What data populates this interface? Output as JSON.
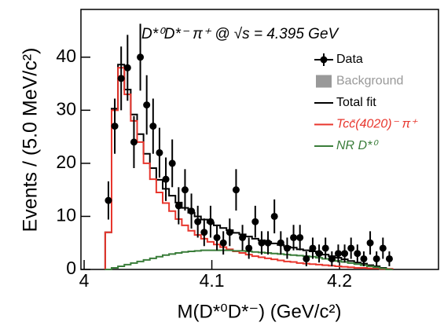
{
  "chart_data": {
    "type": "histfit",
    "title": "D*⁰D*⁻ π⁺ @ √s = 4.395 GeV",
    "xlabel": "M(D*⁰D*⁻) (GeV/c²)",
    "ylabel": "Events / (5.0 MeV/c²)",
    "xlim": [
      3.9975,
      4.2775
    ],
    "xticks": [
      4,
      4.1,
      4.2
    ],
    "ylim": [
      0,
      49
    ],
    "yticks": [
      0,
      10,
      20,
      30,
      40
    ],
    "x": [
      4.019,
      4.024,
      4.029,
      4.034,
      4.039,
      4.044,
      4.049,
      4.054,
      4.059,
      4.064,
      4.069,
      4.074,
      4.079,
      4.084,
      4.089,
      4.094,
      4.099,
      4.104,
      4.109,
      4.114,
      4.119,
      4.124,
      4.129,
      4.134,
      4.139,
      4.144,
      4.149,
      4.154,
      4.159,
      4.164,
      4.169,
      4.174,
      4.179,
      4.184,
      4.189,
      4.194,
      4.199,
      4.204,
      4.209,
      4.214,
      4.219,
      4.224,
      4.229,
      4.234,
      4.239
    ],
    "series": [
      {
        "name": "Data",
        "color": "#000000",
        "style": "points",
        "values": [
          13,
          27,
          36,
          38,
          24,
          40,
          31,
          27,
          22,
          17,
          20,
          12,
          15,
          11,
          9,
          7,
          9,
          6,
          5,
          7,
          15,
          6,
          4,
          9,
          5,
          5,
          10,
          5,
          4,
          6,
          6,
          2,
          4,
          3,
          4,
          2,
          3,
          3,
          4,
          3,
          2,
          5,
          2,
          4,
          2
        ],
        "errors": [
          3.6,
          5.2,
          6,
          6.2,
          4.9,
          6.3,
          5.6,
          5.2,
          4.7,
          4.1,
          4.5,
          3.5,
          3.9,
          3.3,
          3,
          2.6,
          3,
          2.4,
          2.2,
          2.6,
          3.9,
          2.4,
          2,
          3,
          2.2,
          2.2,
          3.2,
          2.2,
          2,
          2.4,
          2.4,
          1.4,
          2,
          1.7,
          2,
          1.4,
          1.7,
          1.7,
          2,
          1.7,
          1.4,
          2.2,
          1.4,
          2,
          1.4
        ]
      },
      {
        "name": "Background",
        "color": "#999999",
        "style": "fill"
      },
      {
        "name": "Total fit",
        "color": "#000000",
        "style": "step",
        "values": [
          7,
          30.3,
          38.6,
          33.9,
          29.2,
          25.5,
          21.8,
          19.1,
          16.9,
          15.2,
          13.9,
          12.6,
          11.6,
          10.7,
          10.0,
          9.4,
          8.8,
          8.3,
          7.8,
          7.4,
          6.9,
          6.6,
          6.2,
          5.8,
          5.5,
          5.2,
          4.9,
          4.6,
          4.3,
          4.1,
          3.8,
          3.6,
          3.4,
          3.1,
          2.8,
          2.5,
          2.2,
          1.9,
          1.6,
          1.3,
          1.1,
          0.8,
          0.6,
          0.3,
          0.1
        ]
      },
      {
        "name": "Tcc̄(4020)⁻ π⁺",
        "color": "#e8362d",
        "style": "step",
        "values": [
          7,
          30,
          38,
          33,
          28,
          24,
          20,
          17,
          14.5,
          12.5,
          11,
          9.5,
          8.3,
          7.3,
          6.5,
          5.8,
          5.2,
          4.7,
          4.2,
          3.8,
          3.4,
          3.1,
          2.8,
          2.5,
          2.3,
          2.1,
          1.9,
          1.7,
          1.5,
          1.4,
          1.2,
          1.1,
          1.0,
          0.9,
          0.8,
          0.7,
          0.6,
          0.5,
          0.4,
          0.3,
          0.3,
          0.2,
          0.2,
          0.1,
          0.1
        ]
      },
      {
        "name": "NR D*⁰",
        "color": "#3a7d3a",
        "style": "step",
        "values": [
          0,
          0.3,
          0.6,
          0.9,
          1.2,
          1.5,
          1.8,
          2.1,
          2.4,
          2.7,
          2.9,
          3.1,
          3.3,
          3.4,
          3.5,
          3.6,
          3.6,
          3.6,
          3.6,
          3.6,
          3.5,
          3.5,
          3.4,
          3.3,
          3.2,
          3.1,
          3.0,
          2.9,
          2.8,
          2.7,
          2.6,
          2.5,
          2.4,
          2.2,
          2.0,
          1.8,
          1.6,
          1.4,
          1.2,
          1.0,
          0.8,
          0.6,
          0.4,
          0.2,
          0
        ]
      }
    ]
  }
}
